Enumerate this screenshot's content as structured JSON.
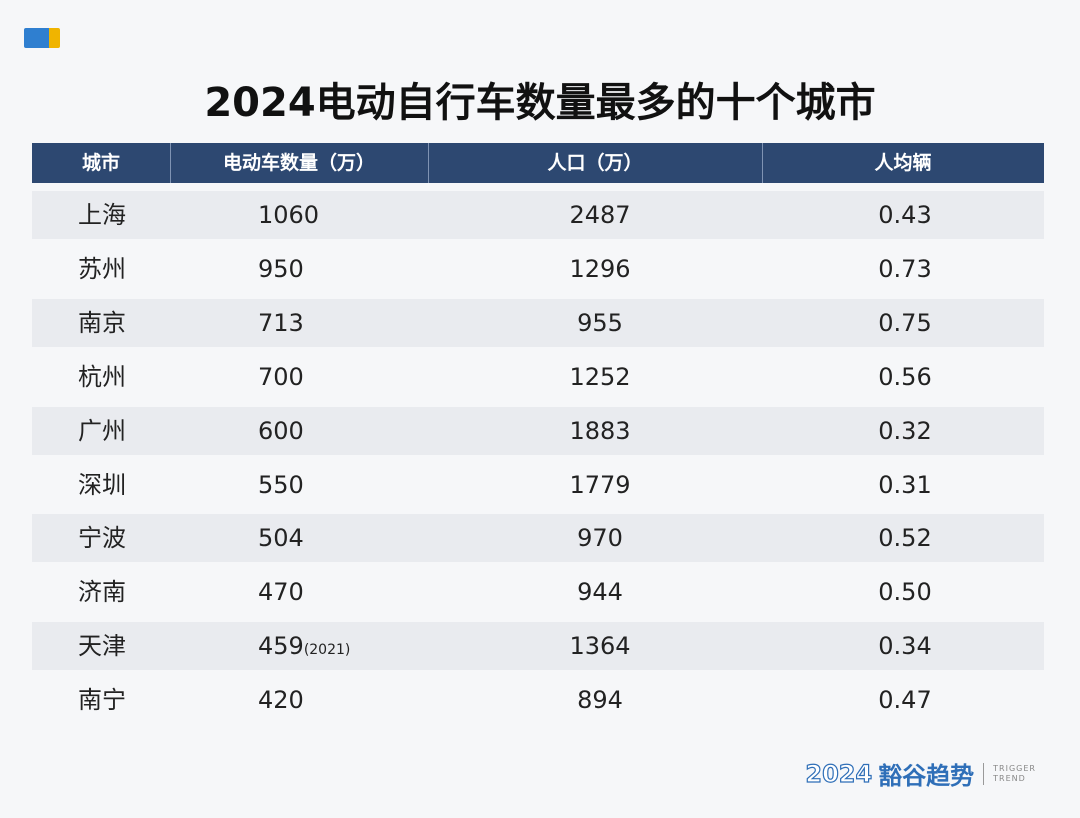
{
  "header": {
    "title": "2024电动自行车数量最多的十个城市"
  },
  "table": {
    "columns": [
      "城市",
      "电动车数量（万）",
      "人口（万）",
      "人均辆"
    ],
    "rows": [
      {
        "cells": [
          "上海",
          "1060",
          "2487",
          "0.43"
        ]
      },
      {
        "cells": [
          "苏州",
          "950",
          "1296",
          "0.73"
        ]
      },
      {
        "cells": [
          "南京",
          "713",
          "955",
          "0.75"
        ]
      },
      {
        "cells": [
          "杭州",
          "700",
          "1252",
          "0.56"
        ]
      },
      {
        "cells": [
          "广州",
          "600",
          "1883",
          "0.32"
        ]
      },
      {
        "cells": [
          "深圳",
          "550",
          "1779",
          "0.31"
        ]
      },
      {
        "cells": [
          "宁波",
          "504",
          "970",
          "0.52"
        ]
      },
      {
        "cells": [
          "济南",
          "470",
          "944",
          "0.50"
        ]
      },
      {
        "cells": [
          "天津",
          "459",
          "1364",
          "0.34"
        ],
        "note": "(2021)"
      },
      {
        "cells": [
          "南宁",
          "420",
          "894",
          "0.47"
        ]
      }
    ]
  },
  "footer": {
    "year": "2024",
    "brand": "豁谷趋势",
    "brand_en_1": "TRIGGER",
    "brand_en_2": "TREND"
  }
}
